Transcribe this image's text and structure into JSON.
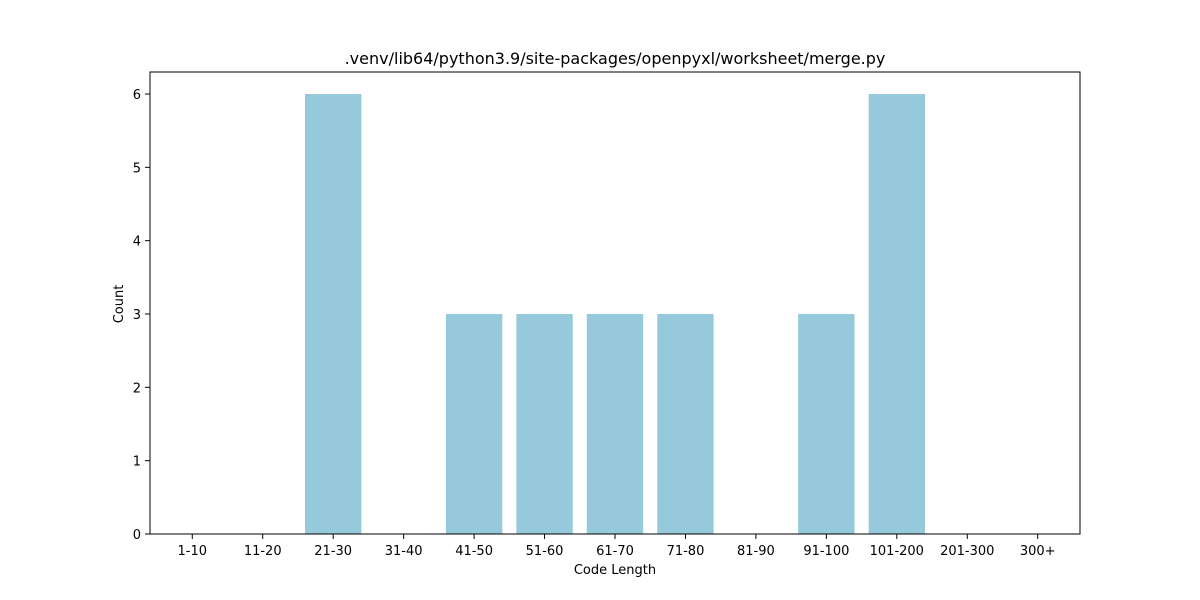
{
  "chart_data": {
    "type": "bar",
    "title": ".venv/lib64/python3.9/site-packages/openpyxl/worksheet/merge.py",
    "xlabel": "Code Length",
    "ylabel": "Count",
    "categories": [
      "1-10",
      "11-20",
      "21-30",
      "31-40",
      "41-50",
      "51-60",
      "61-70",
      "71-80",
      "81-90",
      "91-100",
      "101-200",
      "201-300",
      "300+"
    ],
    "values": [
      0,
      0,
      6,
      0,
      3,
      3,
      3,
      3,
      0,
      3,
      6,
      0,
      0
    ],
    "yticks": [
      "0",
      "1",
      "2",
      "3",
      "4",
      "5",
      "6"
    ],
    "ylim": [
      0,
      6.3
    ],
    "grid": false,
    "bar_color": "#96c9dc"
  }
}
